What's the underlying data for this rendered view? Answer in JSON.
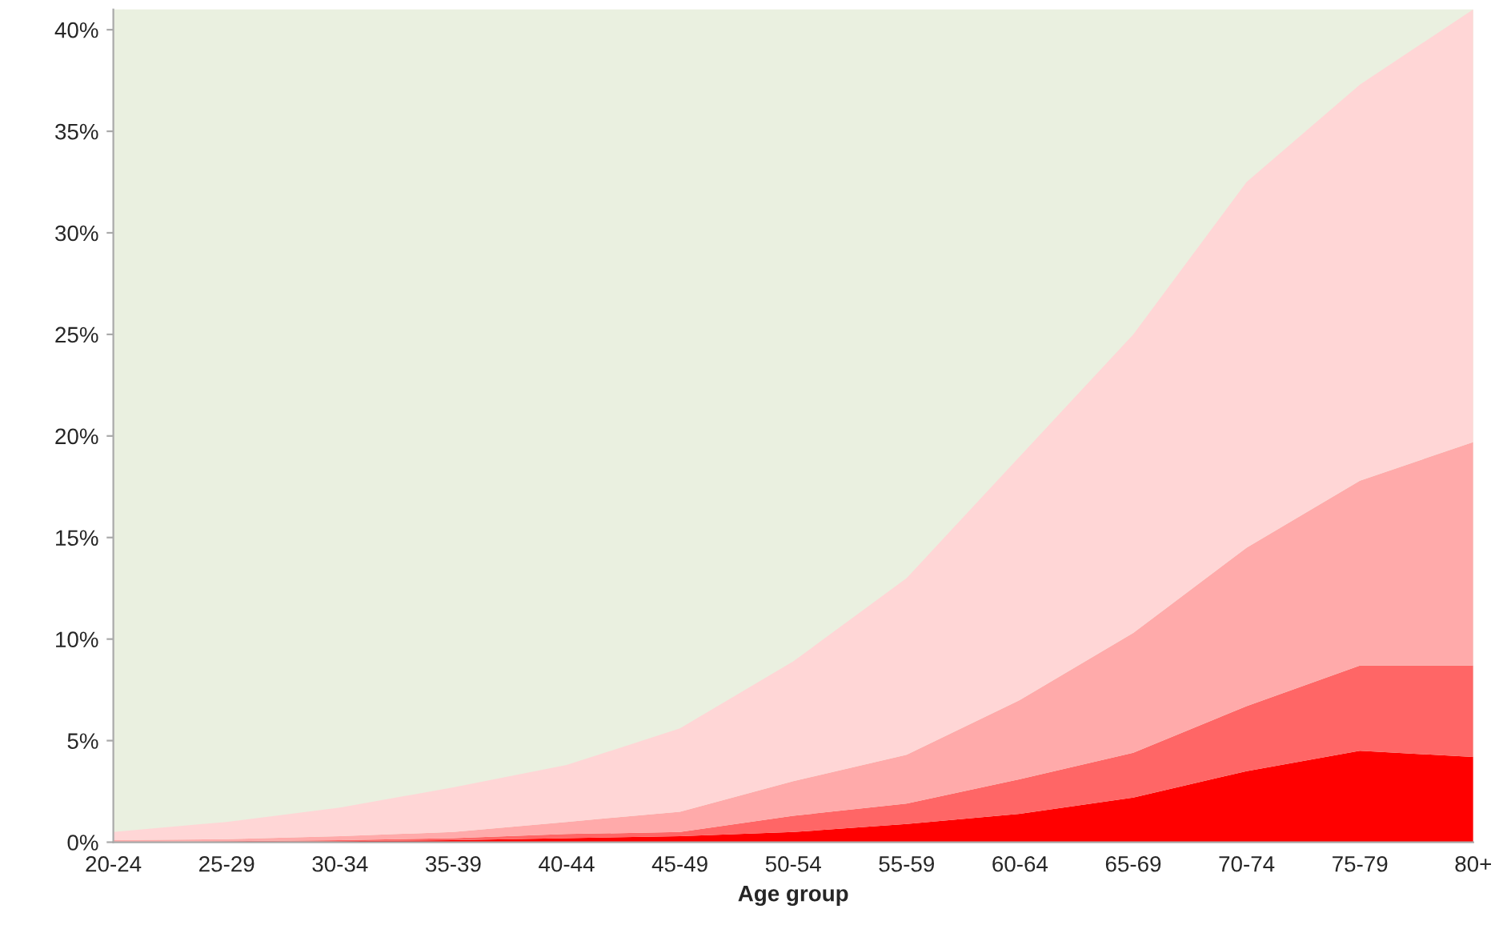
{
  "chart_data": {
    "type": "area",
    "stacked": true,
    "xlabel": "Age group",
    "categories": [
      "20-24",
      "25-29",
      "30-34",
      "35-39",
      "40-44",
      "45-49",
      "50-54",
      "55-59",
      "60-64",
      "65-69",
      "70-74",
      "75-79",
      "80+"
    ],
    "series": [
      {
        "color": "#ff0000",
        "values": [
          0,
          0,
          0.05,
          0.1,
          0.2,
          0.3,
          0.5,
          0.9,
          1.4,
          2.2,
          3.5,
          4.5,
          4.2
        ]
      },
      {
        "color": "#ff6666",
        "values": [
          0,
          0.05,
          0.05,
          0.1,
          0.2,
          0.2,
          0.8,
          1.0,
          1.7,
          2.2,
          3.2,
          4.2,
          4.5
        ]
      },
      {
        "color": "#ffaaaa",
        "values": [
          0.1,
          0.1,
          0.2,
          0.3,
          0.6,
          1.0,
          1.7,
          2.4,
          3.9,
          5.9,
          7.8,
          9.1,
          11.0
        ]
      },
      {
        "color": "#ffd6d6",
        "values": [
          0.4,
          0.85,
          1.4,
          2.2,
          2.8,
          4.1,
          5.9,
          8.7,
          12.0,
          14.7,
          18.0,
          19.5,
          21.3
        ]
      }
    ],
    "ylim": [
      0,
      41
    ],
    "yticks": [
      {
        "value": 0,
        "label": "0%"
      },
      {
        "value": 5,
        "label": "5%"
      },
      {
        "value": 10,
        "label": "10%"
      },
      {
        "value": 15,
        "label": "15%"
      },
      {
        "value": 20,
        "label": "20%"
      },
      {
        "value": 25,
        "label": "25%"
      },
      {
        "value": 30,
        "label": "30%"
      },
      {
        "value": 35,
        "label": "35%"
      },
      {
        "value": 40,
        "label": "40%"
      }
    ],
    "grid": false
  }
}
